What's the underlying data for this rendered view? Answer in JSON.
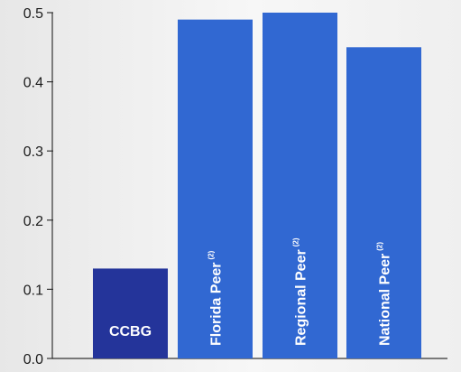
{
  "chart_data": {
    "type": "bar",
    "categories": [
      "CCBG",
      "Florida Peer",
      "Regional Peer",
      "National Peer"
    ],
    "category_superscripts": [
      "",
      "(2)",
      "(2)",
      "(2)"
    ],
    "values": [
      0.13,
      0.49,
      0.5,
      0.45
    ],
    "ylim": [
      0,
      0.5
    ],
    "yticks": [
      "0.0",
      "0.1",
      "0.2",
      "0.3",
      "0.4",
      "0.5"
    ],
    "grid": false,
    "colors": {
      "highlight": "#24349a",
      "peer": "#3168d2",
      "axis": "#333333"
    },
    "label_orientation": [
      "horizontal",
      "vertical",
      "vertical",
      "vertical"
    ]
  }
}
